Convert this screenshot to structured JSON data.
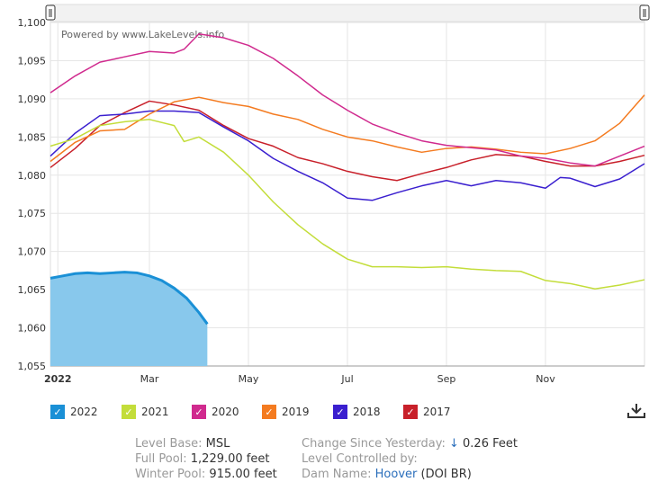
{
  "chart_data": {
    "type": "line",
    "watermark": "Powered by www.LakeLevels.info",
    "ylim": [
      1055,
      1100
    ],
    "yticks": [
      "1,055",
      "1,060",
      "1,065",
      "1,070",
      "1,075",
      "1,080",
      "1,085",
      "1,090",
      "1,095",
      "1,100"
    ],
    "ytick_values": [
      1055,
      1060,
      1065,
      1070,
      1075,
      1080,
      1085,
      1090,
      1095,
      1100
    ],
    "xlim": [
      0,
      12
    ],
    "xticks": [
      {
        "label": "2022",
        "value": 0.15,
        "bold": true
      },
      {
        "label": "Mar",
        "value": 2.0
      },
      {
        "label": "May",
        "value": 4.0
      },
      {
        "label": "Jul",
        "value": 6.0
      },
      {
        "label": "Sep",
        "value": 8.0
      },
      {
        "label": "Nov",
        "value": 10.0
      }
    ],
    "series": [
      {
        "name": "2017",
        "color": "#c8202a",
        "x": [
          0,
          0.5,
          1,
          1.5,
          2,
          2.5,
          3,
          3.5,
          4,
          4.5,
          5,
          5.5,
          6,
          6.5,
          7,
          7.5,
          8,
          8.5,
          9,
          9.5,
          10,
          10.5,
          11,
          11.5,
          12
        ],
        "y": [
          1081.0,
          1083.5,
          1086.5,
          1088.2,
          1089.7,
          1089.2,
          1088.5,
          1086.5,
          1084.8,
          1083.8,
          1082.3,
          1081.5,
          1080.5,
          1079.8,
          1079.3,
          1080.2,
          1081.0,
          1082.0,
          1082.7,
          1082.5,
          1081.8,
          1081.2,
          1081.2,
          1081.8,
          1082.6
        ]
      },
      {
        "name": "2018",
        "color": "#3a1fcf",
        "x": [
          0,
          0.5,
          1,
          1.5,
          2,
          2.5,
          3,
          3.5,
          4,
          4.5,
          5,
          5.5,
          6,
          6.5,
          7,
          7.5,
          8,
          8.5,
          9,
          9.5,
          10,
          10.3,
          10.5,
          11,
          11.5,
          12
        ],
        "y": [
          1082.5,
          1085.5,
          1087.8,
          1088.0,
          1088.4,
          1088.4,
          1088.2,
          1086.3,
          1084.5,
          1082.2,
          1080.5,
          1079.0,
          1077.0,
          1076.7,
          1077.7,
          1078.6,
          1079.3,
          1078.6,
          1079.3,
          1079.0,
          1078.3,
          1079.7,
          1079.6,
          1078.5,
          1079.5,
          1081.5
        ]
      },
      {
        "name": "2019",
        "color": "#f47b20",
        "x": [
          0,
          0.5,
          1,
          1.5,
          2,
          2.5,
          3,
          3.5,
          4,
          4.5,
          5,
          5.5,
          6,
          6.5,
          7,
          7.5,
          8,
          8.5,
          9,
          9.5,
          10,
          10.5,
          11,
          11.5,
          12
        ],
        "y": [
          1081.8,
          1084.3,
          1085.8,
          1086.0,
          1088.0,
          1089.6,
          1090.2,
          1089.5,
          1089.0,
          1088.0,
          1087.3,
          1086.0,
          1085.0,
          1084.5,
          1083.7,
          1083.0,
          1083.5,
          1083.7,
          1083.4,
          1083.0,
          1082.8,
          1083.5,
          1084.5,
          1086.8,
          1090.5
        ]
      },
      {
        "name": "2020",
        "color": "#d02a8e",
        "x": [
          0,
          0.5,
          1,
          1.5,
          2,
          2.5,
          2.7,
          3,
          3.5,
          4,
          4.5,
          5,
          5.5,
          6,
          6.5,
          7,
          7.5,
          8,
          8.5,
          9,
          9.5,
          10,
          10.5,
          11,
          11.5,
          12
        ],
        "y": [
          1090.8,
          1093.0,
          1094.8,
          1095.5,
          1096.2,
          1096.0,
          1096.5,
          1098.5,
          1098.0,
          1097.0,
          1095.3,
          1093.0,
          1090.5,
          1088.5,
          1086.7,
          1085.5,
          1084.5,
          1083.9,
          1083.6,
          1083.3,
          1082.5,
          1082.2,
          1081.6,
          1081.2,
          1082.5,
          1083.8
        ]
      },
      {
        "name": "2021",
        "color": "#c3dd3a",
        "x": [
          0,
          0.5,
          1,
          1.5,
          2,
          2.5,
          2.7,
          3,
          3.5,
          4,
          4.5,
          5,
          5.5,
          6,
          6.5,
          7,
          7.5,
          8,
          8.5,
          9,
          9.5,
          10,
          10.5,
          11,
          11.5,
          12
        ],
        "y": [
          1083.8,
          1084.8,
          1086.5,
          1087.0,
          1087.3,
          1086.5,
          1084.4,
          1085.0,
          1083.0,
          1080.0,
          1076.5,
          1073.5,
          1071.0,
          1069.0,
          1068.0,
          1068.0,
          1067.9,
          1068.0,
          1067.7,
          1067.5,
          1067.4,
          1066.2,
          1065.8,
          1065.1,
          1065.6,
          1066.3
        ]
      }
    ],
    "area_series": {
      "name": "2022",
      "color": "#1a90d6",
      "fill": "#88c8ec",
      "x": [
        0,
        0.25,
        0.5,
        0.75,
        1,
        1.25,
        1.5,
        1.75,
        2,
        2.25,
        2.5,
        2.75,
        3.0,
        3.17
      ],
      "y": [
        1066.5,
        1066.8,
        1067.1,
        1067.2,
        1067.1,
        1067.2,
        1067.3,
        1067.2,
        1066.8,
        1066.2,
        1065.2,
        1063.9,
        1062.0,
        1060.5
      ]
    }
  },
  "legend": [
    {
      "label": "2022",
      "color": "#1a90d6"
    },
    {
      "label": "2021",
      "color": "#c3dd3a"
    },
    {
      "label": "2020",
      "color": "#d02a8e"
    },
    {
      "label": "2019",
      "color": "#f47b20"
    },
    {
      "label": "2018",
      "color": "#3a1fcf"
    },
    {
      "label": "2017",
      "color": "#c8202a"
    }
  ],
  "legend_check": "✓",
  "download_icon": "download-icon",
  "info": {
    "level_base_key": "Level Base:",
    "level_base_val": "MSL",
    "full_pool_key": "Full Pool:",
    "full_pool_val": "1,229.00 feet",
    "winter_pool_key": "Winter Pool:",
    "winter_pool_val": "915.00 feet",
    "change_key": "Change Since Yesterday:",
    "change_arrow": "↓",
    "change_val": "0.26 Feet",
    "controlled_key": "Level Controlled by:",
    "dam_key": "Dam Name:",
    "dam_link": "Hoover",
    "dam_suffix": "(DOI BR)"
  }
}
